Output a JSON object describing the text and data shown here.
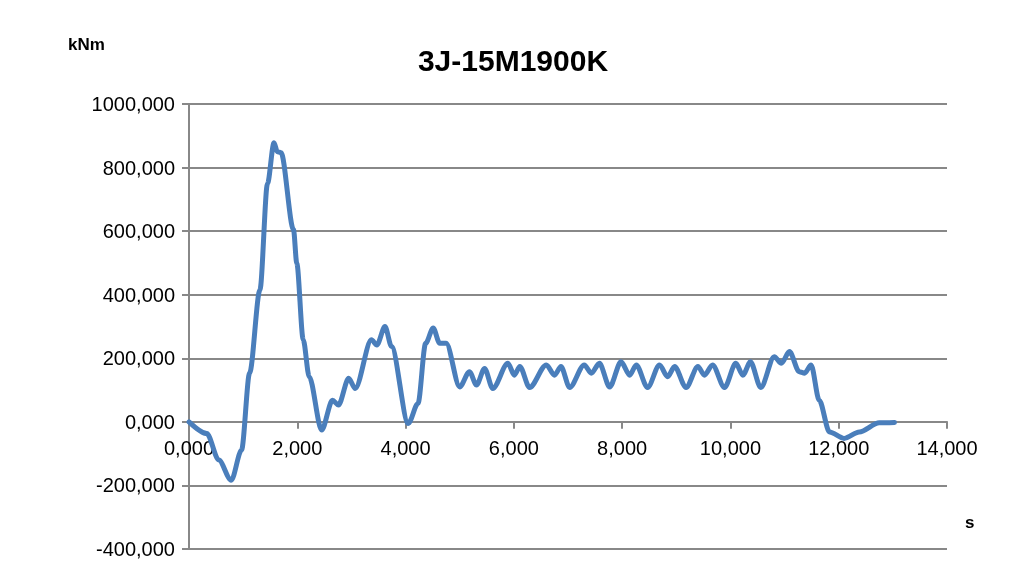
{
  "chart_data": {
    "type": "line",
    "title": "3J-15M1900K",
    "xlabel": "s",
    "ylabel": "kNm",
    "xlim": [
      0,
      14
    ],
    "ylim": [
      -400,
      1000
    ],
    "xticks": [
      {
        "value": 0,
        "label": "0,000"
      },
      {
        "value": 2,
        "label": "2,000"
      },
      {
        "value": 4,
        "label": "4,000"
      },
      {
        "value": 6,
        "label": "6,000"
      },
      {
        "value": 8,
        "label": "8,000"
      },
      {
        "value": 10,
        "label": "10,000"
      },
      {
        "value": 12,
        "label": "12,000"
      },
      {
        "value": 14,
        "label": "14,000"
      }
    ],
    "yticks": [
      {
        "value": -400,
        "label": "-400,000"
      },
      {
        "value": -200,
        "label": "-200,000"
      },
      {
        "value": 0,
        "label": "0,000"
      },
      {
        "value": 200,
        "label": "200,000"
      },
      {
        "value": 400,
        "label": "400,000"
      },
      {
        "value": 600,
        "label": "600,000"
      },
      {
        "value": 800,
        "label": "800,000"
      },
      {
        "value": 1000,
        "label": "1000,000"
      }
    ],
    "grid": "y",
    "marker": "none",
    "line_style": "solid",
    "series": [
      {
        "color": "#4a7ebb",
        "x": [
          0,
          0.33,
          0.55,
          0.78,
          0.97,
          1.12,
          1.31,
          1.45,
          1.57,
          1.63,
          1.7,
          1.93,
          1.99,
          2.11,
          2.22,
          2.45,
          2.65,
          2.76,
          2.95,
          3.07,
          3.37,
          3.47,
          3.62,
          3.74,
          4.05,
          4.23,
          4.37,
          4.51,
          4.63,
          4.75,
          5.0,
          5.18,
          5.31,
          5.46,
          5.61,
          5.89,
          6.01,
          6.11,
          6.29,
          6.6,
          6.75,
          6.87,
          7.03,
          7.3,
          7.43,
          7.58,
          7.77,
          7.98,
          8.14,
          8.26,
          8.47,
          8.69,
          8.84,
          8.97,
          9.18,
          9.4,
          9.52,
          9.67,
          9.89,
          10.1,
          10.23,
          10.37,
          10.56,
          10.81,
          10.94,
          11.09,
          11.27,
          11.37,
          11.49,
          11.64,
          11.83,
          12.1,
          12.38,
          12.75,
          13.03
        ],
        "values": [
          0,
          -37,
          -120,
          -184,
          -89,
          154,
          415,
          750,
          878,
          850,
          847,
          605,
          500,
          258,
          142,
          -26,
          68,
          53,
          137,
          105,
          258,
          242,
          300,
          237,
          -5,
          58,
          247,
          295,
          247,
          247,
          110,
          158,
          116,
          168,
          105,
          184,
          147,
          174,
          108,
          179,
          147,
          174,
          108,
          179,
          153,
          184,
          110,
          189,
          147,
          179,
          108,
          179,
          142,
          174,
          108,
          174,
          147,
          179,
          108,
          184,
          147,
          189,
          108,
          205,
          184,
          221,
          158,
          153,
          179,
          68,
          -32,
          -52,
          -32,
          -3,
          -2
        ]
      }
    ]
  }
}
